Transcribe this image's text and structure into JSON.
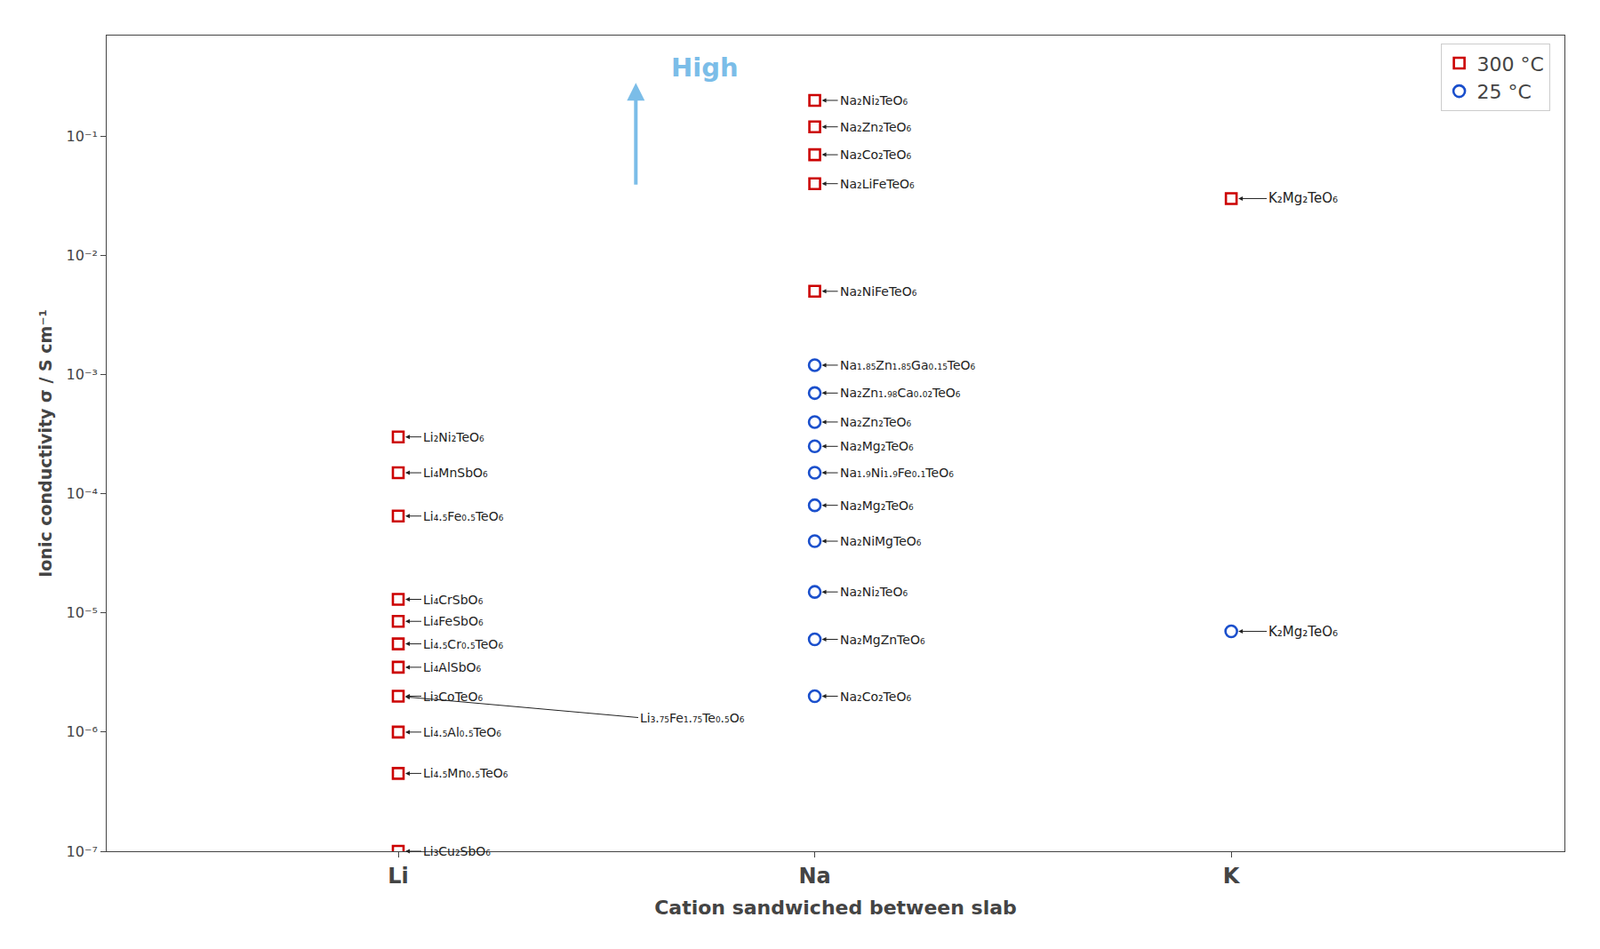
{
  "chart_data": {
    "type": "scatter",
    "xlabel": "Cation sandwiched between slab",
    "ylabel": "Ionic conductivity σ / S cm⁻¹",
    "categories": [
      "Li",
      "Na",
      "K"
    ],
    "log": "y",
    "ylim": [
      1e-07,
      0.7
    ],
    "yticks": [
      {
        "value": 1e-07,
        "label": "10⁻⁷"
      },
      {
        "value": 1e-06,
        "label": "10⁻⁶"
      },
      {
        "value": 1e-05,
        "label": "10⁻⁵"
      },
      {
        "value": 0.0001,
        "label": "10⁻⁴"
      },
      {
        "value": 0.001,
        "label": "10⁻³"
      },
      {
        "value": 0.01,
        "label": "10⁻²"
      },
      {
        "value": 0.1,
        "label": "10⁻¹"
      }
    ],
    "grid": false,
    "legend": "upper right",
    "series": [
      {
        "name": "300 °C",
        "color": "#cc0000",
        "marker": "square",
        "x": [
          "Li",
          "Li",
          "Li",
          "Li",
          "Li",
          "Li",
          "Li",
          "Li",
          "Li",
          "Li",
          "Li",
          "Na",
          "Na",
          "Na",
          "Na",
          "Na",
          "K"
        ],
        "values": [
          0.0003,
          0.00015,
          6.5e-05,
          1.3e-05,
          8.5e-06,
          5.5e-06,
          3.5e-06,
          2e-06,
          1e-06,
          4.5e-07,
          1e-07,
          0.2,
          0.12,
          0.07,
          0.04,
          0.005,
          0.03
        ],
        "labels": [
          "Li₂Ni₂TeO₆",
          "Li₄MnSbO₆",
          "Li₄.₅Fe₀.₅TeO₆",
          "Li₄CrSbO₆",
          "Li₄FeSbO₆",
          "Li₄.₅Cr₀.₅TeO₆",
          "Li₄AlSbO₆",
          "Li₃CoTeO₆",
          "Li₄.₅Al₀.₅TeO₆",
          "Li₄.₅Mn₀.₅TeO₆",
          "Li₃Cu₂SbO₆",
          "Na₂Ni₂TeO₆",
          "Na₂Zn₂TeO₆",
          "Na₂Co₂TeO₆",
          "Na₂LiFeTeO₆",
          "Na₂NiFeTeO₆",
          "K₂Mg₂TeO₆"
        ]
      },
      {
        "name": "25 °C",
        "color": "#1a4fcc",
        "marker": "circle",
        "x": [
          "Na",
          "Na",
          "Na",
          "Na",
          "Na",
          "Na",
          "Na",
          "Na",
          "Na",
          "Na",
          "K"
        ],
        "values": [
          0.0012,
          0.0007,
          0.0004,
          0.00025,
          0.00015,
          8e-05,
          4e-05,
          1.5e-05,
          6e-06,
          2e-06,
          7e-06
        ],
        "labels": [
          "Na₁.₈₅Zn₁.₈₅Ga₀.₁₅TeO₆",
          "Na₂Zn₁.₉₈Ca₀.₀₂TeO₆",
          "Na₂Zn₂TeO₆",
          "Na₂Mg₂TeO₆",
          "Na₁.₉Ni₁.₉Fe₀.₁TeO₆",
          "Na₂Mg₂TeO₆",
          "Na₂NiMgTeO₆",
          "Na₂Ni₂TeO₆",
          "Na₂MgZnTeO₆",
          "Na₂Co₂TeO₆",
          "K₂Mg₂TeO₆"
        ]
      }
    ],
    "annotations": [
      {
        "text": "Li₃.₇₅Fe₁.₇₅Te₀.₅O₆",
        "x": "Li",
        "y": 2e-06
      },
      {
        "text": "High",
        "color": "#7bbde8"
      }
    ]
  }
}
